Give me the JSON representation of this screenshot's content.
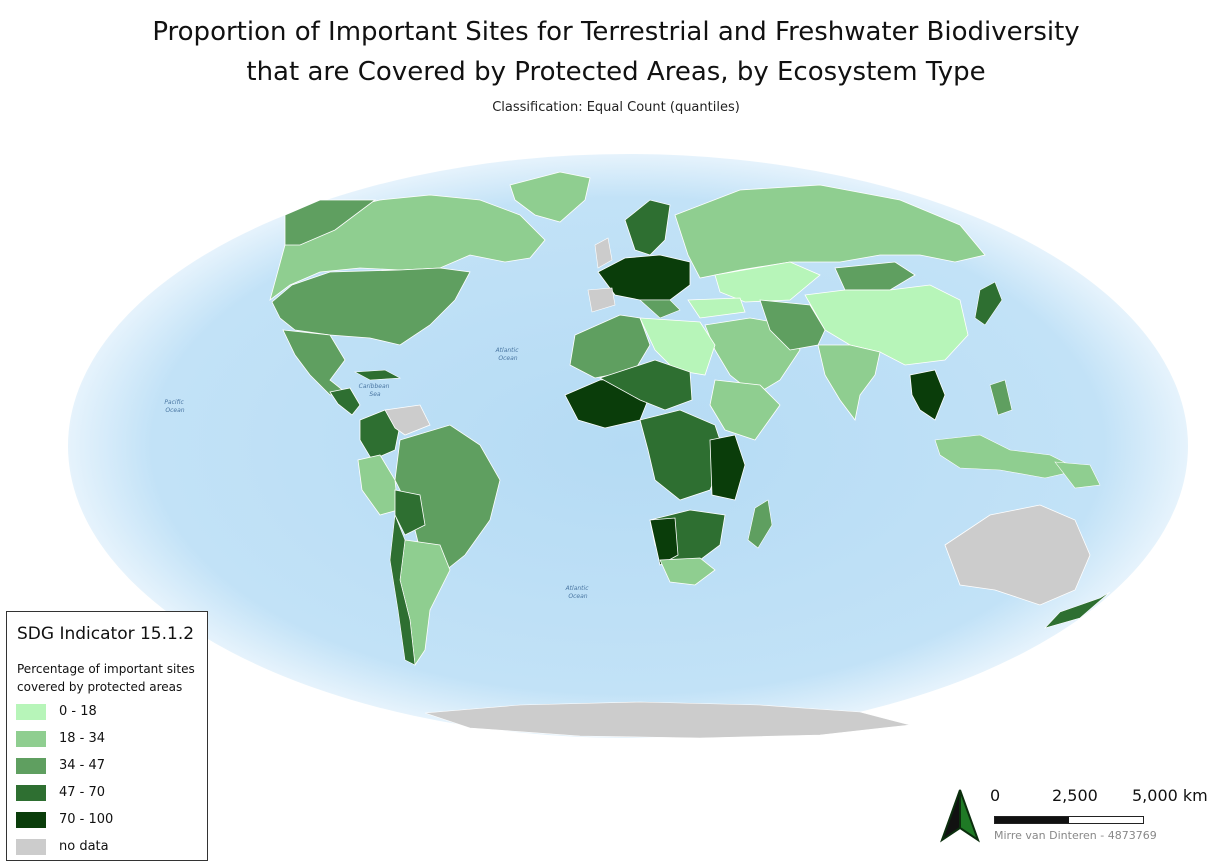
{
  "title_line1": "Proportion of Important Sites for Terrestrial and Freshwater Biodiversity",
  "title_line2": "that are Covered by Protected Areas, by Ecosystem Type",
  "subtitle": "Classification: Equal Count (quantiles)",
  "legend": {
    "title": "SDG Indicator 15.1.2",
    "description": "Percentage of important sites covered by protected areas",
    "classes": [
      {
        "label": "0 - 18",
        "color": "#b7f5b9"
      },
      {
        "label": "18 - 34",
        "color": "#8fce90"
      },
      {
        "label": "34 - 47",
        "color": "#5f9f60"
      },
      {
        "label": "47 - 70",
        "color": "#2e6f31"
      },
      {
        "label": "70 - 100",
        "color": "#0a3d0a"
      },
      {
        "label": "no data",
        "color": "#cccccc"
      }
    ]
  },
  "scale_bar": {
    "labels": [
      "0",
      "2,500",
      "5,000 km"
    ]
  },
  "credit": "Mirre van Dinteren - 4873769",
  "ocean_labels": [
    {
      "name": "Pacific",
      "line2": "Ocean"
    },
    {
      "name": "Atlantic",
      "line2": "Ocean"
    },
    {
      "name": "Caribbean",
      "line2": "Sea"
    },
    {
      "name": "Atlantic",
      "line2": "Ocean"
    }
  ],
  "colors": {
    "ocean": "#b9dcf3",
    "ocean_edge": "#dbeefb",
    "no_data": "#cccccc",
    "north_arrow": "#1f7a25"
  }
}
